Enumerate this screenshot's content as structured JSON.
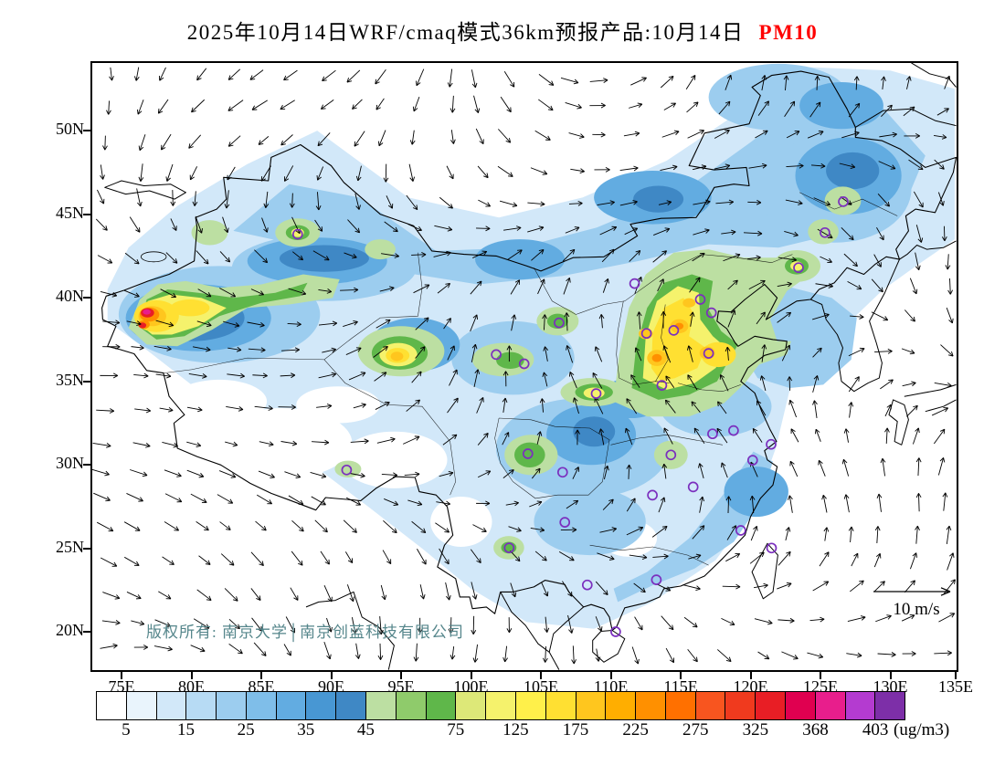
{
  "title": {
    "text": "2025年10月14日WRF/cmaq模式36km预报产品:10月14日",
    "pollutant": "PM10",
    "pollutant_color": "#FF0000"
  },
  "map": {
    "lat_ticks": [
      {
        "label": "50N",
        "deg": 50
      },
      {
        "label": "45N",
        "deg": 45
      },
      {
        "label": "40N",
        "deg": 40
      },
      {
        "label": "35N",
        "deg": 35
      },
      {
        "label": "30N",
        "deg": 30
      },
      {
        "label": "25N",
        "deg": 25
      },
      {
        "label": "20N",
        "deg": 20
      }
    ],
    "lon_ticks": [
      {
        "label": "75E",
        "deg": 75
      },
      {
        "label": "80E",
        "deg": 80
      },
      {
        "label": "85E",
        "deg": 85
      },
      {
        "label": "90E",
        "deg": 90
      },
      {
        "label": "95E",
        "deg": 95
      },
      {
        "label": "100E",
        "deg": 100
      },
      {
        "label": "105E",
        "deg": 105
      },
      {
        "label": "110E",
        "deg": 110
      },
      {
        "label": "115E",
        "deg": 115
      },
      {
        "label": "120E",
        "deg": 120
      },
      {
        "label": "125E",
        "deg": 125
      },
      {
        "label": "130E",
        "deg": 130
      },
      {
        "label": "135E",
        "deg": 135
      }
    ],
    "copyright": "版权所有: 南京大学│南京创蓝科技有限公司",
    "copyright_color": "#55868B",
    "wind_legend_label": "10 m/s",
    "marker_color": "#7B2FBE",
    "city_markers": [
      {
        "lon": 87.6,
        "lat": 43.8
      },
      {
        "lon": 91.1,
        "lat": 29.7
      },
      {
        "lon": 101.8,
        "lat": 36.6
      },
      {
        "lon": 103.8,
        "lat": 36.05
      },
      {
        "lon": 106.3,
        "lat": 38.5
      },
      {
        "lon": 111.7,
        "lat": 40.85
      },
      {
        "lon": 116.4,
        "lat": 39.9
      },
      {
        "lon": 117.2,
        "lat": 39.1
      },
      {
        "lon": 114.5,
        "lat": 38.05
      },
      {
        "lon": 112.55,
        "lat": 37.87
      },
      {
        "lon": 117.0,
        "lat": 36.67
      },
      {
        "lon": 113.65,
        "lat": 34.76
      },
      {
        "lon": 108.95,
        "lat": 34.27
      },
      {
        "lon": 104.07,
        "lat": 30.67
      },
      {
        "lon": 106.55,
        "lat": 29.56
      },
      {
        "lon": 114.3,
        "lat": 30.6
      },
      {
        "lon": 117.28,
        "lat": 31.86
      },
      {
        "lon": 118.78,
        "lat": 32.06
      },
      {
        "lon": 121.47,
        "lat": 31.23
      },
      {
        "lon": 120.15,
        "lat": 30.28
      },
      {
        "lon": 115.89,
        "lat": 28.68
      },
      {
        "lon": 112.98,
        "lat": 28.19
      },
      {
        "lon": 106.71,
        "lat": 26.57
      },
      {
        "lon": 102.73,
        "lat": 25.04
      },
      {
        "lon": 108.32,
        "lat": 22.82
      },
      {
        "lon": 113.26,
        "lat": 23.13
      },
      {
        "lon": 119.3,
        "lat": 26.08
      },
      {
        "lon": 121.5,
        "lat": 25.03
      },
      {
        "lon": 110.35,
        "lat": 20.02
      },
      {
        "lon": 123.43,
        "lat": 41.8
      },
      {
        "lon": 125.32,
        "lat": 43.9
      },
      {
        "lon": 126.63,
        "lat": 45.75
      }
    ]
  },
  "colorbar": {
    "unit": "(ug/m3)",
    "colors": [
      "#FFFFFF",
      "#E9F4FC",
      "#D2E8F9",
      "#B7DBF4",
      "#9CCDEF",
      "#7FBEE9",
      "#62ACE1",
      "#4897D3",
      "#3F88C5",
      "#BCDFA2",
      "#8FCB6B",
      "#5FB74A",
      "#DDE878",
      "#F5F26C",
      "#FFF04A",
      "#FFE032",
      "#FFC61E",
      "#FFAE00",
      "#FF9000",
      "#FF7000",
      "#F8551F",
      "#F03A1E",
      "#E81E25",
      "#E00050",
      "#E81E8C",
      "#B43BD0",
      "#7D2FA8"
    ],
    "ticks": [
      {
        "label": "5",
        "b": 1
      },
      {
        "label": "15",
        "b": 3
      },
      {
        "label": "25",
        "b": 5
      },
      {
        "label": "35",
        "b": 7
      },
      {
        "label": "45",
        "b": 9
      },
      {
        "label": "75",
        "b": 12
      },
      {
        "label": "125",
        "b": 14
      },
      {
        "label": "175",
        "b": 16
      },
      {
        "label": "225",
        "b": 18
      },
      {
        "label": "275",
        "b": 20
      },
      {
        "label": "325",
        "b": 22
      },
      {
        "label": "368",
        "b": 24
      },
      {
        "label": "403",
        "b": 26
      }
    ]
  }
}
